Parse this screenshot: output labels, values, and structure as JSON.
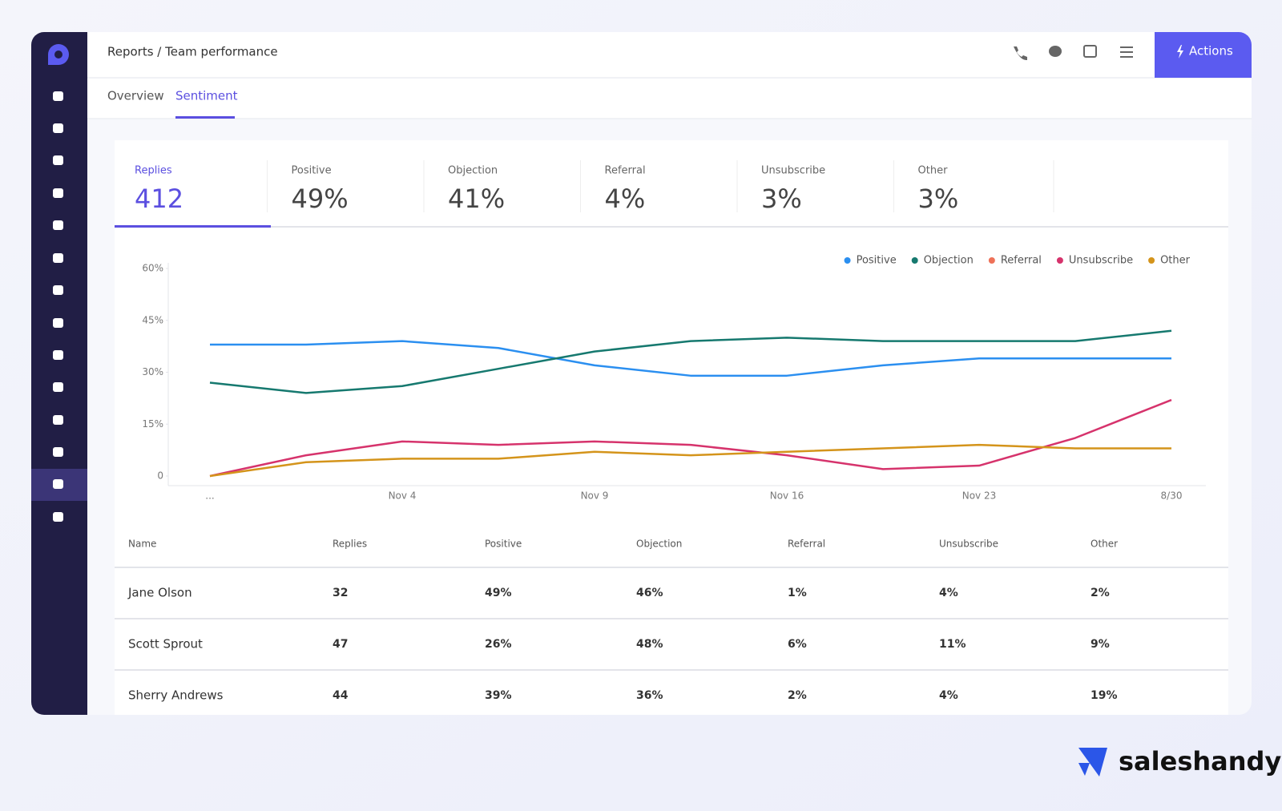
{
  "header": {
    "breadcrumb": "Reports / Team performance",
    "action": "Actions"
  },
  "tabs": [
    "Overview",
    "Sentiment"
  ],
  "stats": [
    {
      "label": "Replies",
      "value": "412"
    },
    {
      "label": "Positive",
      "value": "49%"
    },
    {
      "label": "Objection",
      "value": "41%"
    },
    {
      "label": "Referral",
      "value": "4%"
    },
    {
      "label": "Unsubscribe",
      "value": "3%"
    },
    {
      "label": "Other",
      "value": "3%"
    }
  ],
  "chart_data": {
    "type": "line",
    "categories": [
      "...",
      null,
      "Nov 4",
      null,
      "Nov 9",
      null,
      "Nov 16",
      null,
      "Nov 23",
      null,
      "8/30"
    ],
    "series": [
      {
        "name": "Positive",
        "color": "#2b8ff0",
        "values": [
          38,
          38,
          39,
          37,
          32,
          29,
          29,
          32,
          34,
          34,
          34
        ]
      },
      {
        "name": "Objection",
        "color": "#16796f",
        "values": [
          27,
          24,
          26,
          31,
          36,
          39,
          40,
          39,
          39,
          39,
          42
        ]
      },
      {
        "name": "Referral",
        "color": "#ee7158",
        "values": [
          null,
          null,
          null,
          null,
          null,
          null,
          null,
          null,
          null,
          null,
          null
        ]
      },
      {
        "name": "Unsubscribe",
        "color": "#d6336c",
        "values": [
          0,
          6,
          10,
          9,
          10,
          9,
          6,
          2,
          3,
          11,
          22
        ]
      },
      {
        "name": "Other",
        "color": "#d4941b",
        "values": [
          0,
          4,
          5,
          5,
          7,
          6,
          7,
          8,
          9,
          8,
          8
        ]
      }
    ],
    "ylim": [
      0,
      60
    ],
    "yticks": [
      0,
      {
        "value": 15,
        "label": "15%"
      },
      {
        "value": 30,
        "label": "30%"
      },
      {
        "value": 45,
        "label": "45%"
      },
      {
        "value": 60,
        "label": "60%"
      }
    ],
    "legend": "top-right"
  },
  "table": {
    "columns": [
      "Name",
      "Replies",
      "Positive",
      "Objection",
      "Referral",
      "Unsubscribe",
      "Other"
    ],
    "rows": [
      [
        "Jane Olson",
        "32",
        "49%",
        "46%",
        "1%",
        "4%",
        "2%"
      ],
      [
        "Scott Sprout",
        "47",
        "26%",
        "48%",
        "6%",
        "11%",
        "9%"
      ],
      [
        "Sherry Andrews",
        "44",
        "39%",
        "36%",
        "2%",
        "4%",
        "19%"
      ]
    ]
  },
  "brand": "saleshandy"
}
